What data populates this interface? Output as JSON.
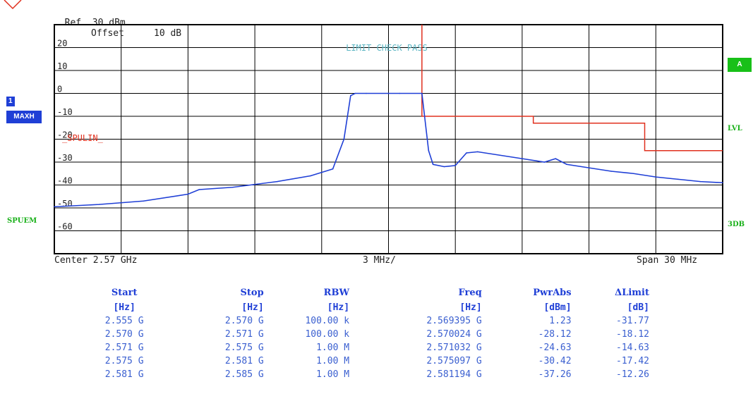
{
  "header": {
    "ref_label": "Ref",
    "ref_value": "30 dBm",
    "offset_label": "Offset",
    "offset_value": "10 dB"
  },
  "overlay": {
    "limit_check": "LIMIT CHECK   PASS",
    "spulin_label": "_SPULIN_"
  },
  "left_badges": {
    "trace_number": "1",
    "trace_mode": "MAXH",
    "spuem": "SPUEM"
  },
  "right_badges": {
    "a": "A",
    "lvl": "LVL",
    "db3": "3DB"
  },
  "footer": {
    "center": "Center 2.57 GHz",
    "div": "3 MHz/",
    "span": "Span 30 MHz"
  },
  "colors": {
    "trace": "#1f3fd6",
    "limit": "#e0301e",
    "grid": "#000000",
    "overlay_text": "#5fb7c4"
  },
  "table": {
    "headers": [
      "Start",
      "Stop",
      "RBW",
      "Freq",
      "PwrAbs",
      "ΔLimit"
    ],
    "units": [
      "[Hz]",
      "[Hz]",
      "[Hz]",
      "[Hz]",
      "[dBm]",
      "[dB]"
    ],
    "rows": [
      [
        "2.555 G",
        "2.570 G",
        "100.00 k",
        "2.569395 G",
        "1.23",
        "-31.77"
      ],
      [
        "2.570 G",
        "2.571 G",
        "100.00 k",
        "2.570024 G",
        "-28.12",
        "-18.12"
      ],
      [
        "2.571 G",
        "2.575 G",
        "1.00 M",
        "2.571032 G",
        "-24.63",
        "-14.63"
      ],
      [
        "2.575 G",
        "2.581 G",
        "1.00 M",
        "2.575097 G",
        "-30.42",
        "-17.42"
      ],
      [
        "2.581 G",
        "2.585 G",
        "1.00 M",
        "2.581194 G",
        "-37.26",
        "-12.26"
      ]
    ]
  },
  "chart_data": {
    "type": "line",
    "xlabel": "",
    "ylabel": "",
    "xlim": [
      2.555,
      2.585
    ],
    "ylim": [
      -70,
      30
    ],
    "x_unit": "GHz",
    "y_unit": "dBm",
    "y_tick_labels": [
      "20",
      "10",
      "0",
      "-10",
      "-20",
      "-30",
      "-40",
      "-50",
      "-60"
    ],
    "y_tick_values": [
      20,
      10,
      0,
      -10,
      -20,
      -30,
      -40,
      -50,
      -60
    ],
    "grid": true,
    "series": [
      {
        "trace": "1",
        "x": [
          2.555,
          2.557,
          2.559,
          2.561,
          2.5615,
          2.563,
          2.565,
          2.5665,
          2.5675,
          2.568,
          2.5683,
          2.5685,
          2.569,
          2.57,
          2.5705,
          2.5715,
          2.5718,
          2.572,
          2.5725,
          2.573,
          2.5735,
          2.574,
          2.575,
          2.576,
          2.577,
          2.5775,
          2.578,
          2.579,
          2.58,
          2.581,
          2.582,
          2.583,
          2.584,
          2.585
        ],
        "y": [
          -49.5,
          -48.5,
          -47,
          -44,
          -42,
          -41,
          -38.5,
          -36,
          -33,
          -20,
          -1,
          0,
          0,
          0,
          0,
          0,
          -25,
          -31,
          -32,
          -31.5,
          -26,
          -25.5,
          -27,
          -28.5,
          -30,
          -28.5,
          -31,
          -32.5,
          -34,
          -35,
          -36.5,
          -37.5,
          -38.5,
          -39
        ]
      }
    ],
    "limit_line": {
      "x": [
        2.5715,
        2.5715,
        2.5765,
        2.5765,
        2.5815,
        2.5815,
        2.585
      ],
      "y": [
        30,
        -10,
        -10,
        -13,
        -13,
        -25,
        -25
      ]
    }
  }
}
